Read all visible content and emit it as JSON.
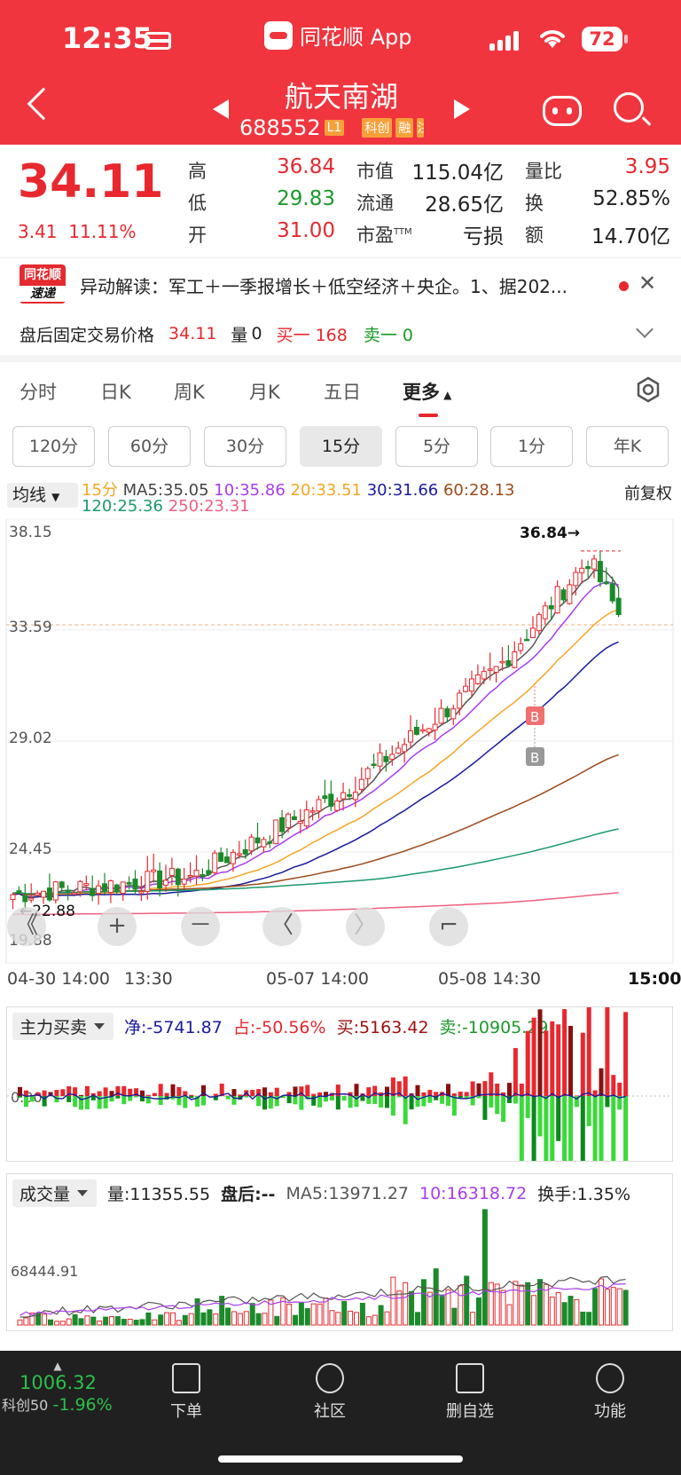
{
  "status": {
    "time": "12:35",
    "battery": "72"
  },
  "app": {
    "name": "同花顺 App"
  },
  "stock": {
    "name": "航天南湖",
    "code": "688552",
    "tags": [
      "L1",
      "科创",
      "融",
      "注"
    ]
  },
  "quote": {
    "price": "34.11",
    "change": "3.41",
    "change_pct": "11.11%",
    "high_label": "高",
    "high": "36.84",
    "low_label": "低",
    "low": "29.83",
    "open_label": "开",
    "open": "31.00",
    "mcap_label": "市值",
    "mcap": "115.04亿",
    "float_label": "流通",
    "float": "28.65亿",
    "pe_label": "市盈",
    "pe_sup": "TTM",
    "pe": "亏损",
    "vr_label": "量比",
    "vr": "3.95",
    "turn_label": "换",
    "turn": "52.85%",
    "amt_label": "额",
    "amt": "14.70亿"
  },
  "alert": {
    "logo_top": "同花顺",
    "logo_bottom": "速递",
    "text": "异动解读：军工＋一季报增长＋低空经济＋央企。1、据202..."
  },
  "afterhours": {
    "label": "盘后固定交易价格",
    "price": "34.11",
    "vol_label": "量",
    "vol": "0",
    "bid": "买一 168",
    "ask": "卖一 0"
  },
  "tabs": [
    "分时",
    "日K",
    "周K",
    "月K",
    "五日",
    "更多"
  ],
  "periods": [
    "120分",
    "60分",
    "30分",
    "15分",
    "5分",
    "1分",
    "年K"
  ],
  "active_period": "15分",
  "ma": {
    "select": "均线",
    "period": "15分",
    "ma5": "MA5:35.05",
    "ma10": "10:35.86",
    "ma20": "20:33.51",
    "ma30": "30:31.66",
    "ma60": "60:28.13",
    "ma120": "120:25.36",
    "ma250": "250:23.31",
    "adjust": "前复权",
    "colors": {
      "ma5": "#555555",
      "ma10": "#a93cf0",
      "ma20": "#f5a623",
      "ma30": "#1a1aa0",
      "ma60": "#9b4a1a",
      "ma120": "#1a9a6a",
      "ma250": "#f06080"
    }
  },
  "chart_data": {
    "type": "candlestick",
    "y_ticks": [
      "38.15",
      "33.59",
      "29.02",
      "24.45",
      "19.88"
    ],
    "ylim": [
      19.88,
      38.15
    ],
    "high_mark": "36.84→",
    "low_mark": "←22.88",
    "x_labels": [
      "04-30 14:00",
      "13:30",
      "05-07 14:00",
      "05-08 14:30",
      "15:00"
    ],
    "last_price_line": 33.8,
    "buy_markers": [
      "B",
      "B"
    ]
  },
  "controls": [
    "《",
    "+",
    "－",
    "〈",
    "〉",
    "⌐"
  ],
  "capital": {
    "select": "主力买卖",
    "net": "净:-5741.87",
    "ratio": "占:-50.56%",
    "buy": "买:5163.42",
    "sell": "卖:-10905.29",
    "zero": "0.00"
  },
  "volume": {
    "select": "成交量",
    "vol": "量:11355.55",
    "after": "盘后:--",
    "ma5": "MA5:13971.27",
    "ma10": "10:16318.72",
    "turnover": "换手:1.35%",
    "tick": "68444.91"
  },
  "index": {
    "value": "1006.32",
    "name": "科创50",
    "change": "-1.96%"
  },
  "nav": [
    "下单",
    "社区",
    "删自选",
    "功能"
  ]
}
